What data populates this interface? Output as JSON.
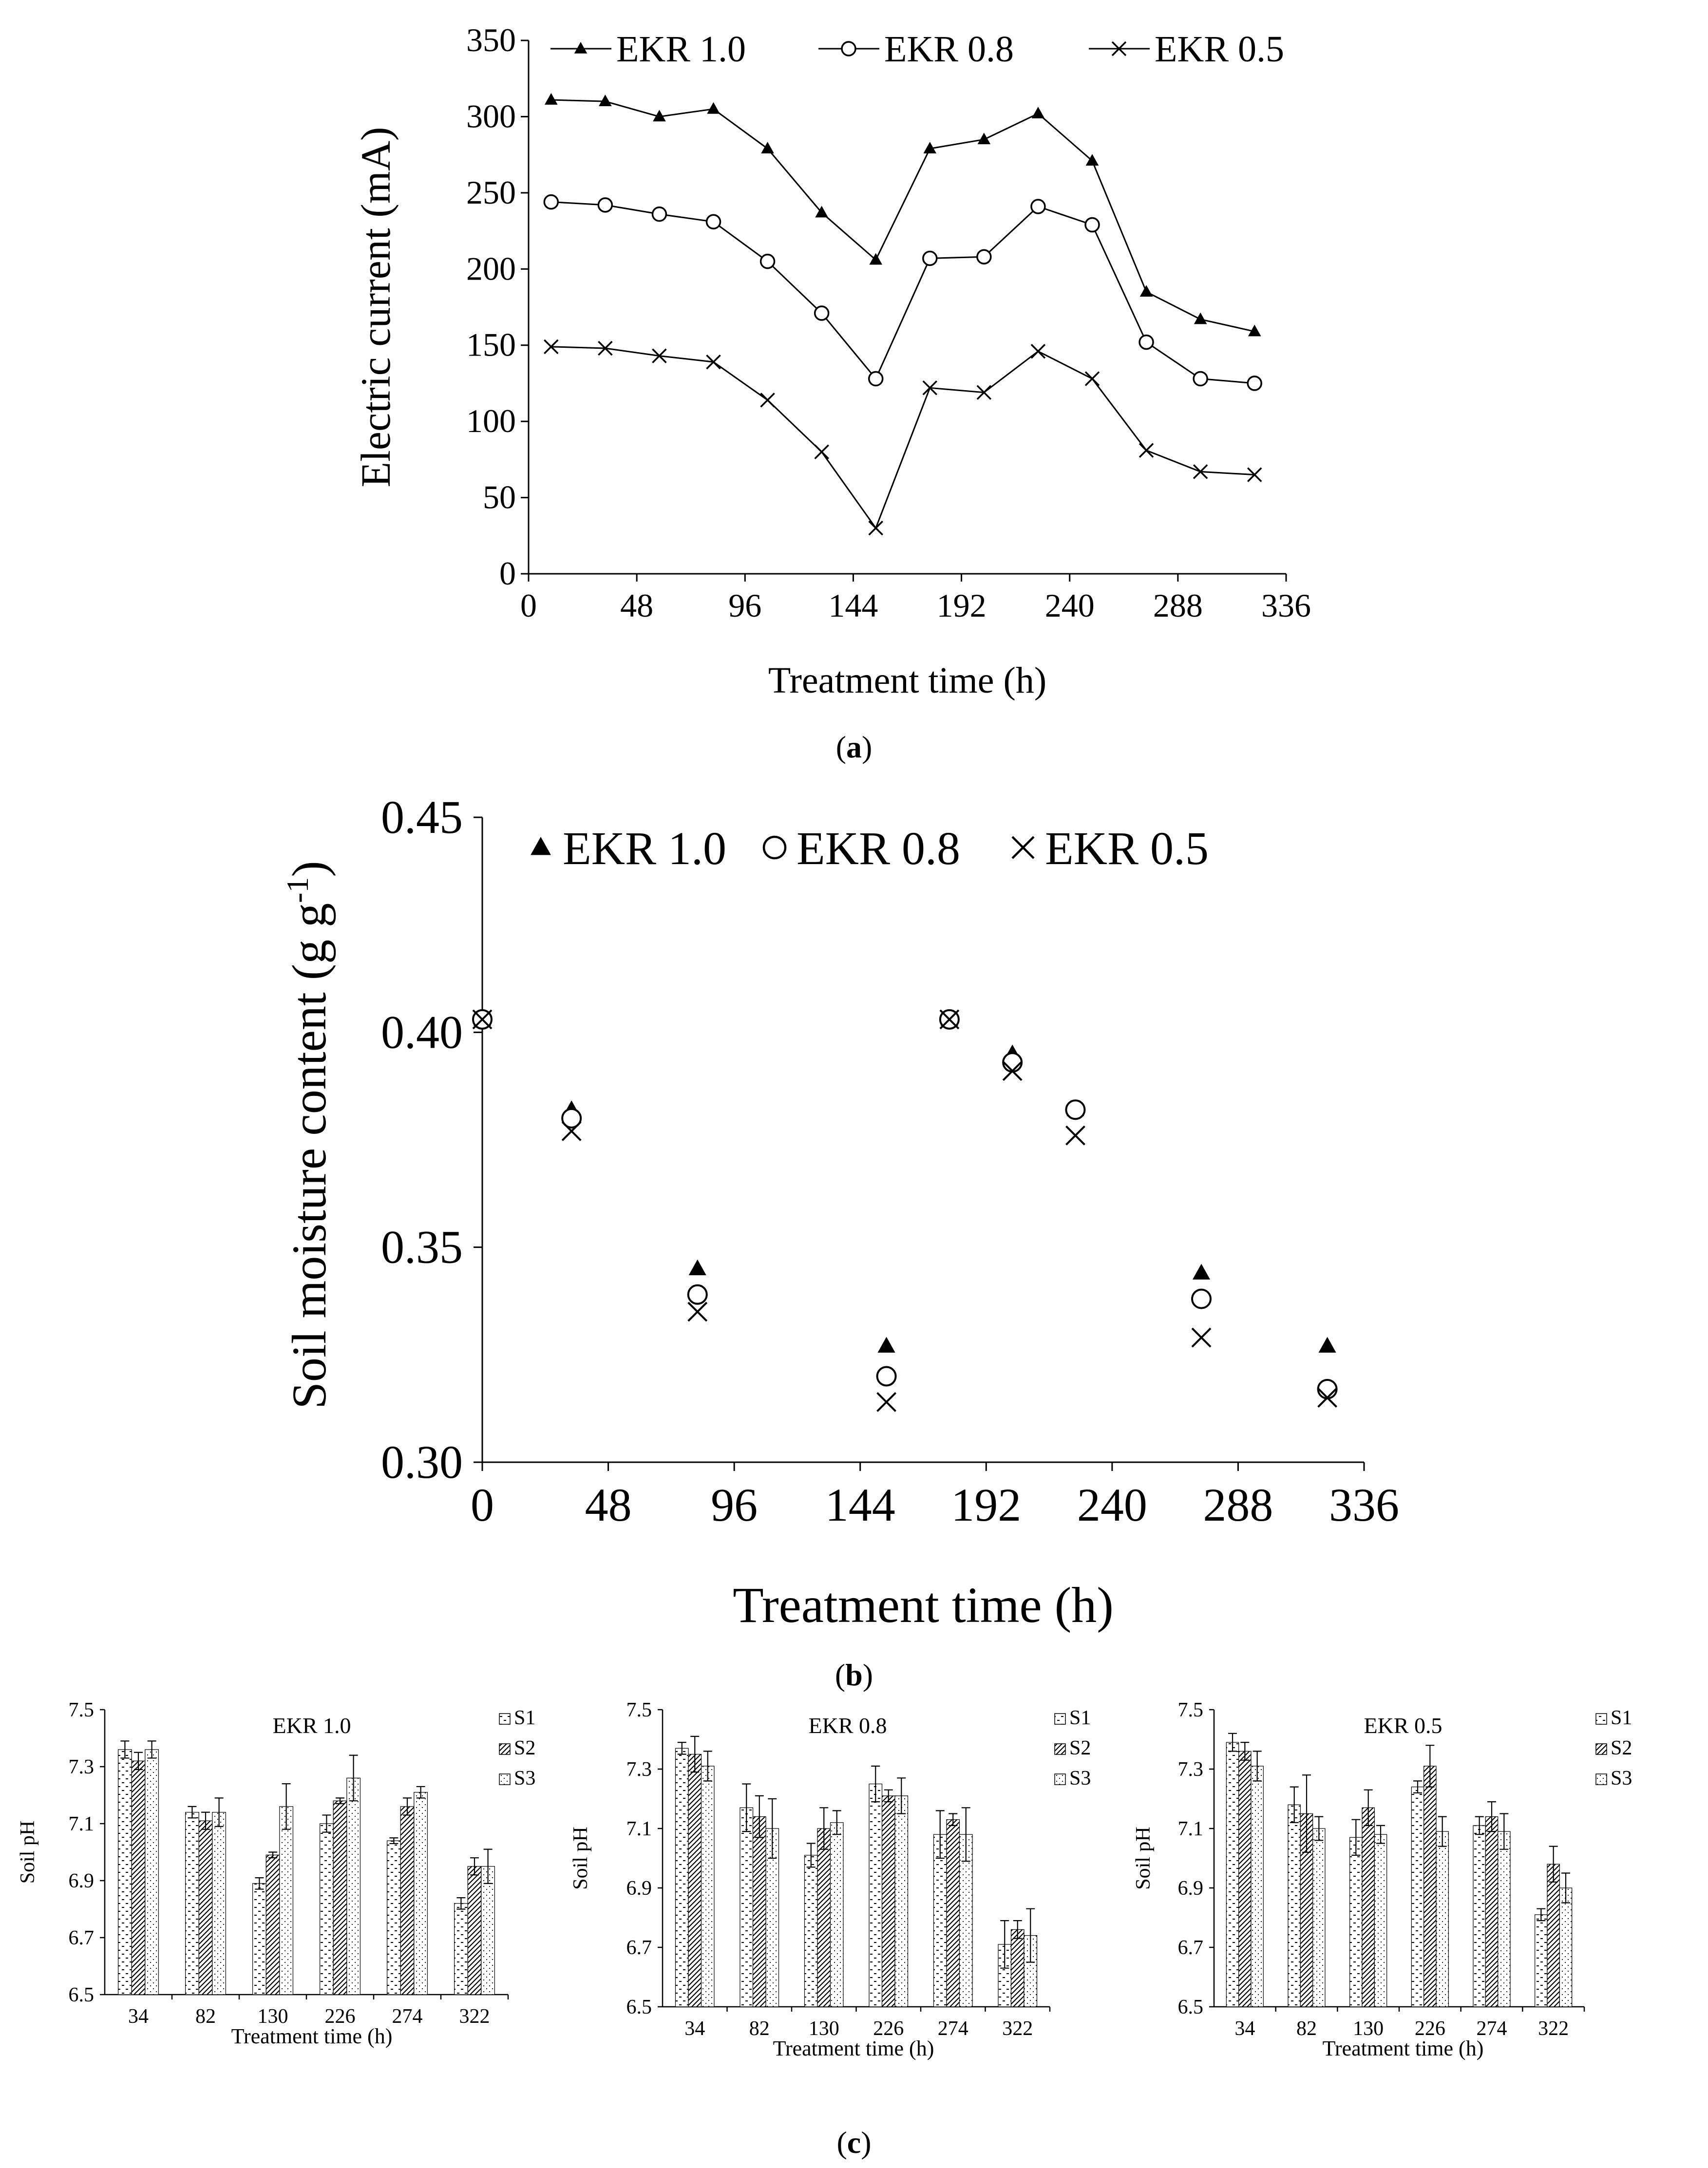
{
  "chart_data": [
    {
      "panel": "(a)",
      "type": "line",
      "xlabel": "Treatment time (h)",
      "ylabel": "Electric current  (mA)",
      "xlim": [
        0,
        336
      ],
      "ylim": [
        0,
        350
      ],
      "xticks": [
        0,
        48,
        96,
        144,
        192,
        240,
        288,
        336
      ],
      "yticks": [
        0,
        50,
        100,
        150,
        200,
        250,
        300,
        350
      ],
      "legend_position": "top",
      "x": [
        10,
        34,
        58,
        82,
        106,
        130,
        154,
        178,
        202,
        226,
        250,
        274,
        298,
        322
      ],
      "series": [
        {
          "name": "EKR 1.0",
          "marker": "triangle",
          "values": [
            311,
            310,
            300,
            305,
            279,
            237,
            206,
            279,
            285,
            302,
            271,
            185,
            167,
            159
          ]
        },
        {
          "name": "EKR 0.8",
          "marker": "circle",
          "values": [
            244,
            242,
            236,
            231,
            205,
            171,
            128,
            207,
            208,
            241,
            229,
            152,
            128,
            125
          ]
        },
        {
          "name": "EKR 0.5",
          "marker": "cross",
          "values": [
            149,
            148,
            143,
            139,
            114,
            80,
            30,
            122,
            119,
            146,
            128,
            81,
            67,
            65
          ]
        }
      ]
    },
    {
      "panel": "(b)",
      "type": "scatter",
      "xlabel": "Treatment time (h)",
      "ylabel": "Soil moisture content",
      "ylabel_unit": "(g g",
      "ylabel_unit_sup": "-1",
      "ylabel_unit_close": ")",
      "xlim": [
        0,
        336
      ],
      "ylim": [
        0.3,
        0.45
      ],
      "xticks": [
        0,
        48,
        96,
        144,
        192,
        240,
        288,
        336
      ],
      "yticks": [
        "0.30",
        "0.35",
        "0.40",
        "0.45"
      ],
      "legend_position": "top",
      "x": [
        0,
        34,
        82,
        154,
        178,
        202,
        226,
        274,
        322
      ],
      "series": [
        {
          "name": "EKR 1.0",
          "marker": "triangle",
          "values": [
            0.403,
            0.382,
            0.345,
            0.327,
            0.403,
            0.395,
            0.382,
            0.344,
            0.327
          ]
        },
        {
          "name": "EKR 0.8",
          "marker": "circle",
          "values": [
            0.403,
            0.38,
            0.339,
            0.32,
            0.403,
            0.393,
            0.382,
            0.338,
            0.317
          ]
        },
        {
          "name": "EKR 0.5",
          "marker": "cross",
          "values": [
            0.403,
            0.377,
            0.335,
            0.314,
            0.403,
            0.391,
            0.376,
            0.329,
            0.315
          ]
        }
      ]
    },
    {
      "panel": "(c)",
      "type": "bar",
      "title": "EKR 1.0",
      "xlabel": "Treatment time (h)",
      "ylabel": "Soil pH",
      "ylim": [
        6.5,
        7.5
      ],
      "yticks": [
        "6.5",
        "6.7",
        "6.9",
        "7.1",
        "7.3",
        "7.5"
      ],
      "categories": [
        "34",
        "82",
        "130",
        "226",
        "274",
        "322"
      ],
      "legend_position": "top-right",
      "series": [
        {
          "name": "S1",
          "values": [
            7.36,
            7.14,
            6.89,
            7.1,
            7.04,
            6.82
          ],
          "errors": [
            0.03,
            0.02,
            0.02,
            0.03,
            0.01,
            0.02
          ]
        },
        {
          "name": "S2",
          "values": [
            7.32,
            7.11,
            6.99,
            7.18,
            7.16,
            6.95
          ],
          "errors": [
            0.03,
            0.03,
            0.01,
            0.01,
            0.03,
            0.03
          ]
        },
        {
          "name": "S3",
          "values": [
            7.36,
            7.14,
            7.16,
            7.26,
            7.21,
            6.95
          ],
          "errors": [
            0.03,
            0.05,
            0.08,
            0.08,
            0.02,
            0.06
          ]
        }
      ]
    },
    {
      "panel": "(c)",
      "type": "bar",
      "title": "EKR 0.8",
      "xlabel": "Treatment time (h)",
      "ylabel": "Soil pH",
      "ylim": [
        6.5,
        7.5
      ],
      "yticks": [
        "6.5",
        "6.7",
        "6.9",
        "7.1",
        "7.3",
        "7.5"
      ],
      "categories": [
        "34",
        "82",
        "130",
        "226",
        "274",
        "322"
      ],
      "legend_position": "top-right",
      "series": [
        {
          "name": "S1",
          "values": [
            7.37,
            7.17,
            7.01,
            7.25,
            7.08,
            6.71
          ],
          "errors": [
            0.02,
            0.08,
            0.04,
            0.06,
            0.08,
            0.08
          ]
        },
        {
          "name": "S2",
          "values": [
            7.35,
            7.14,
            7.1,
            7.21,
            7.13,
            6.76
          ],
          "errors": [
            0.06,
            0.07,
            0.07,
            0.02,
            0.02,
            0.03
          ]
        },
        {
          "name": "S3",
          "values": [
            7.31,
            7.1,
            7.12,
            7.21,
            7.08,
            6.74
          ],
          "errors": [
            0.05,
            0.1,
            0.04,
            0.06,
            0.09,
            0.09
          ]
        }
      ]
    },
    {
      "panel": "(c)",
      "type": "bar",
      "title": "EKR 0.5",
      "xlabel": "Treatment time (h)",
      "ylabel": "Soil pH",
      "ylim": [
        6.5,
        7.5
      ],
      "yticks": [
        "6.5",
        "6.7",
        "6.9",
        "7.1",
        "7.3",
        "7.5"
      ],
      "categories": [
        "34",
        "82",
        "130",
        "226",
        "274",
        "322"
      ],
      "legend_position": "top-right",
      "series": [
        {
          "name": "S1",
          "values": [
            7.39,
            7.18,
            7.07,
            7.24,
            7.11,
            6.81
          ],
          "errors": [
            0.03,
            0.06,
            0.06,
            0.02,
            0.03,
            0.02
          ]
        },
        {
          "name": "S2",
          "values": [
            7.36,
            7.15,
            7.17,
            7.31,
            7.14,
            6.98
          ],
          "errors": [
            0.03,
            0.13,
            0.06,
            0.07,
            0.05,
            0.06
          ]
        },
        {
          "name": "S3",
          "values": [
            7.31,
            7.1,
            7.08,
            7.09,
            7.09,
            6.9
          ],
          "errors": [
            0.05,
            0.04,
            0.03,
            0.05,
            0.06,
            0.05
          ]
        }
      ]
    }
  ],
  "captions": {
    "a": "a",
    "b": "b",
    "c": "c"
  }
}
